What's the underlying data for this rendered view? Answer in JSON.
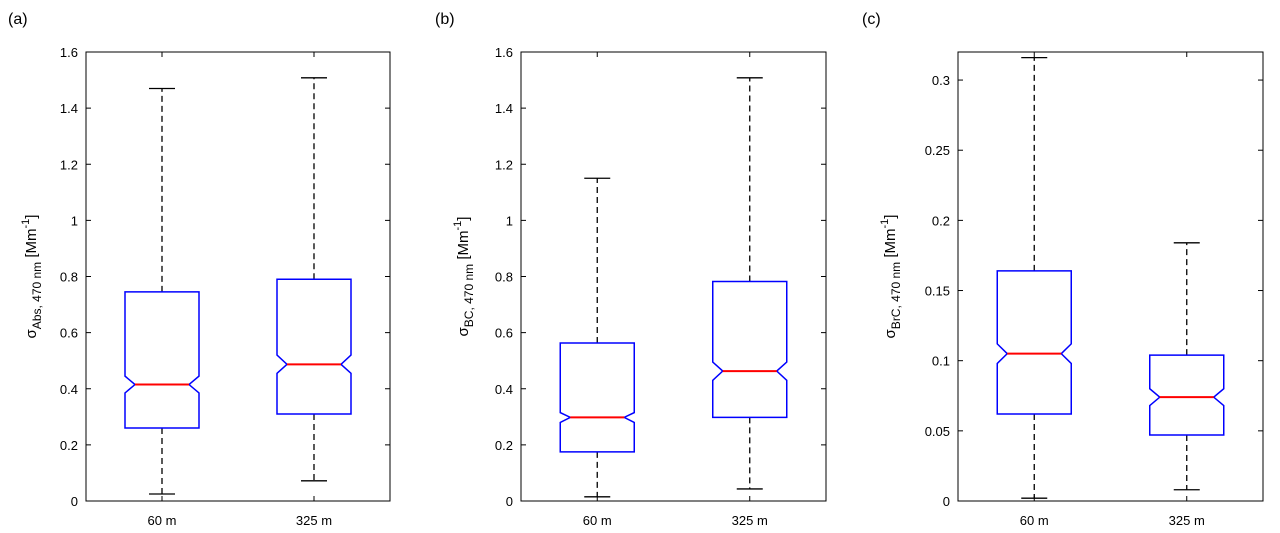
{
  "chart_data": [
    {
      "type": "box",
      "panel_label": "(a)",
      "ylabel": {
        "base": "σ",
        "sub": "Abs, 470 nm",
        "rest": " [Mm",
        "sup": "-1",
        "end": "]"
      },
      "ylim": [
        0,
        1.6
      ],
      "yticks": [
        0,
        0.2,
        0.4,
        0.6,
        0.8,
        1,
        1.2,
        1.4,
        1.6
      ],
      "ytick_labels": [
        "0",
        "0.2",
        "0.4",
        "0.6",
        "0.8",
        "1",
        "1.2",
        "1.4",
        "1.6"
      ],
      "categories": [
        "60 m",
        "325 m"
      ],
      "boxes": [
        {
          "whisker_low": 0.025,
          "q1": 0.26,
          "median": 0.415,
          "notch_low": 0.385,
          "notch_high": 0.445,
          "q3": 0.745,
          "whisker_high": 1.47
        },
        {
          "whisker_low": 0.072,
          "q1": 0.31,
          "median": 0.487,
          "notch_low": 0.455,
          "notch_high": 0.52,
          "q3": 0.79,
          "whisker_high": 1.508
        }
      ]
    },
    {
      "type": "box",
      "panel_label": "(b)",
      "ylabel": {
        "base": "σ",
        "sub": "BC, 470 nm",
        "rest": " [Mm",
        "sup": "-1",
        "end": "]"
      },
      "ylim": [
        0,
        1.6
      ],
      "yticks": [
        0,
        0.2,
        0.4,
        0.6,
        0.8,
        1,
        1.2,
        1.4,
        1.6
      ],
      "ytick_labels": [
        "0",
        "0.2",
        "0.4",
        "0.6",
        "0.8",
        "1",
        "1.2",
        "1.4",
        "1.6"
      ],
      "categories": [
        "60 m",
        "325 m"
      ],
      "boxes": [
        {
          "whisker_low": 0.015,
          "q1": 0.175,
          "median": 0.298,
          "notch_low": 0.28,
          "notch_high": 0.315,
          "q3": 0.563,
          "whisker_high": 1.15
        },
        {
          "whisker_low": 0.043,
          "q1": 0.298,
          "median": 0.463,
          "notch_low": 0.43,
          "notch_high": 0.495,
          "q3": 0.782,
          "whisker_high": 1.508
        }
      ]
    },
    {
      "type": "box",
      "panel_label": "(c)",
      "ylabel": {
        "base": "σ",
        "sub": "BrC, 470 nm",
        "rest": " [Mm",
        "sup": "-1",
        "end": "]"
      },
      "ylim": [
        0,
        0.32
      ],
      "yticks": [
        0,
        0.05,
        0.1,
        0.15,
        0.2,
        0.25,
        0.3
      ],
      "ytick_labels": [
        "0",
        "0.05",
        "0.1",
        "0.15",
        "0.2",
        "0.25",
        "0.3"
      ],
      "categories": [
        "60 m",
        "325 m"
      ],
      "boxes": [
        {
          "whisker_low": 0.002,
          "q1": 0.062,
          "median": 0.105,
          "notch_low": 0.098,
          "notch_high": 0.112,
          "q3": 0.164,
          "whisker_high": 0.316
        },
        {
          "whisker_low": 0.008,
          "q1": 0.047,
          "median": 0.074,
          "notch_low": 0.068,
          "notch_high": 0.08,
          "q3": 0.104,
          "whisker_high": 0.184
        }
      ]
    }
  ],
  "colors": {
    "box": "#0000ff",
    "median": "#ff0000",
    "whisker": "#000000",
    "axes": "#000000"
  }
}
